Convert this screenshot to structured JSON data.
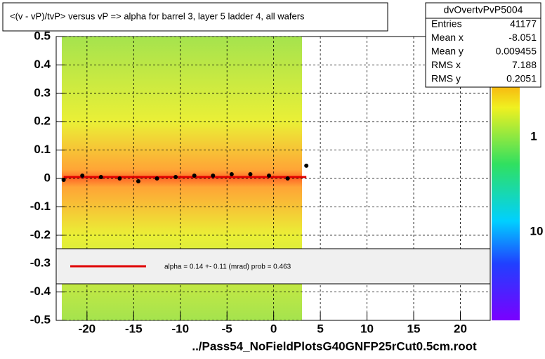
{
  "chart_data": {
    "type": "profile",
    "title": "<(v - vP)/tvP> versus   vP => alpha for barrel 3, layer 5 ladder 4, all wafers",
    "x_label": "../Pass54_NoFieldPlotsG40GNFP25rCut0.5cm.root",
    "xlim": [
      -23.3,
      23.2
    ],
    "ylim": [
      -0.5,
      0.5
    ],
    "xticks": [
      -20,
      -15,
      -10,
      -5,
      0,
      5,
      10,
      15,
      20
    ],
    "yticks": [
      -0.5,
      -0.4,
      -0.3,
      -0.2,
      -0.1,
      0,
      0.1,
      0.2,
      0.3,
      0.4,
      0.5
    ],
    "grid": true,
    "x": [
      -22.5,
      -20.5,
      -18.5,
      -16.5,
      -14.5,
      -12.5,
      -10.5,
      -8.5,
      -6.5,
      -4.5,
      -2.5,
      -0.5,
      1.5,
      3.5
    ],
    "series": [
      {
        "name": "profile",
        "color": "#000000",
        "values": [
          -0.005,
          0.01,
          0.005,
          0.0,
          -0.01,
          0.0,
          0.005,
          0.01,
          0.01,
          0.015,
          0.015,
          0.01,
          0.0,
          0.045
        ]
      }
    ],
    "fit": {
      "color": "#e00000",
      "value": 0.005,
      "x_range": [
        -22.5,
        3.5
      ],
      "legend": "alpha =    0.14 +-  0.11 (mrad) prob = 0.463"
    },
    "color_scale_labels": [
      "1",
      "10"
    ],
    "stats": {
      "name": "dvOvertvPvP5004",
      "rows": [
        [
          "Entries",
          41177
        ],
        [
          "Mean x",
          -8.051
        ],
        [
          "Mean y",
          0.009455
        ],
        [
          "RMS x",
          7.188
        ],
        [
          "RMS y",
          0.2051
        ]
      ]
    }
  }
}
